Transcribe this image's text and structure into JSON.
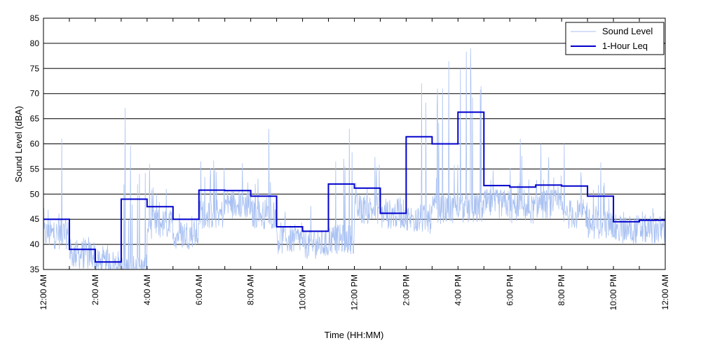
{
  "chart_data": {
    "type": "line",
    "title": "",
    "xlabel": "Time (HH:MM)",
    "ylabel": "Sound Level (dBA)",
    "xlim": [
      0,
      24
    ],
    "ylim": [
      35,
      85
    ],
    "grid": "horizontal",
    "legend_position": "top-right",
    "x_ticks": [
      {
        "hour": 0,
        "label": "12:00 AM"
      },
      {
        "hour": 2,
        "label": "2:00 AM"
      },
      {
        "hour": 4,
        "label": "4:00 AM"
      },
      {
        "hour": 6,
        "label": "6:00 AM"
      },
      {
        "hour": 8,
        "label": "8:00 AM"
      },
      {
        "hour": 10,
        "label": "10:00 AM"
      },
      {
        "hour": 12,
        "label": "12:00 PM"
      },
      {
        "hour": 14,
        "label": "2:00 PM"
      },
      {
        "hour": 16,
        "label": "4:00 PM"
      },
      {
        "hour": 18,
        "label": "6:00 PM"
      },
      {
        "hour": 20,
        "label": "8:00 PM"
      },
      {
        "hour": 22,
        "label": "10:00 PM"
      },
      {
        "hour": 24,
        "label": "12:00 AM"
      }
    ],
    "y_ticks": [
      35,
      40,
      45,
      50,
      55,
      60,
      65,
      70,
      75,
      80,
      85
    ],
    "series": [
      {
        "name": "Sound Level",
        "color": "#a9c1f2",
        "style": "thin-line",
        "baseline_by_hour": [
          42,
          38,
          36,
          35,
          44,
          42,
          46,
          48,
          46,
          41,
          40,
          41,
          47,
          46,
          45,
          47,
          47,
          48,
          47,
          48,
          46,
          44,
          43,
          43
        ],
        "notable_peaks": [
          {
            "x": 0.7,
            "y": 61
          },
          {
            "x": 3.7,
            "y": 54
          },
          {
            "x": 4.1,
            "y": 56
          },
          {
            "x": 8.7,
            "y": 63
          },
          {
            "x": 11.8,
            "y": 63
          },
          {
            "x": 14.6,
            "y": 72
          },
          {
            "x": 15.4,
            "y": 71
          },
          {
            "x": 16.1,
            "y": 75
          },
          {
            "x": 16.5,
            "y": 73
          },
          {
            "x": 18.4,
            "y": 61
          },
          {
            "x": 19.2,
            "y": 60
          },
          {
            "x": 20.1,
            "y": 60
          }
        ]
      },
      {
        "name": "1-Hour Leq",
        "color": "#0000cc",
        "style": "step",
        "hour_values": [
          45,
          39,
          36.5,
          49,
          47.5,
          45,
          50.8,
          50.7,
          49.6,
          43.5,
          42.6,
          52,
          51.2,
          46.2,
          61.4,
          60,
          66.3,
          51.7,
          51.4,
          51.8,
          51.6,
          49.6,
          44.5,
          44.8
        ]
      }
    ]
  }
}
